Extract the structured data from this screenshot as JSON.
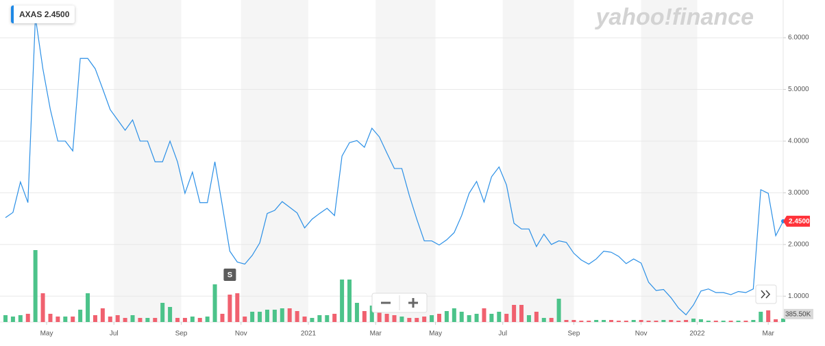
{
  "chart_data": {
    "type": "line",
    "brand": "yahoo!finance",
    "series": [
      {
        "name": "AXAS",
        "color": "#2a8fe6",
        "values": [
          2.52,
          2.62,
          3.21,
          2.81,
          6.4,
          5.4,
          4.61,
          4.0,
          4.0,
          3.81,
          5.6,
          5.6,
          5.4,
          5.01,
          4.61,
          4.41,
          4.21,
          4.41,
          4.0,
          4.0,
          3.6,
          3.6,
          4.0,
          3.6,
          2.99,
          3.4,
          2.81,
          2.81,
          3.6,
          2.75,
          1.87,
          1.66,
          1.62,
          1.79,
          2.03,
          2.6,
          2.66,
          2.83,
          2.72,
          2.61,
          2.32,
          2.49,
          2.6,
          2.7,
          2.56,
          3.71,
          3.97,
          4.01,
          3.88,
          4.25,
          4.08,
          3.77,
          3.47,
          3.47,
          2.95,
          2.49,
          2.07,
          2.07,
          1.99,
          2.09,
          2.23,
          2.56,
          2.99,
          3.22,
          2.82,
          3.31,
          3.5,
          3.15,
          2.41,
          2.3,
          2.3,
          1.96,
          2.2,
          2.0,
          2.07,
          2.04,
          1.83,
          1.7,
          1.62,
          1.72,
          1.87,
          1.85,
          1.77,
          1.63,
          1.72,
          1.64,
          1.27,
          1.11,
          1.13,
          0.97,
          0.77,
          0.64,
          0.83,
          1.1,
          1.14,
          1.07,
          1.07,
          1.03,
          1.09,
          1.07,
          1.14,
          3.06,
          2.99,
          2.17,
          2.45
        ]
      }
    ],
    "last_price": {
      "value": 2.45,
      "label": "2.4500"
    },
    "volume": {
      "up_color": "#4cc38a",
      "down_color": "#f0616f",
      "values": [
        760000,
        608000,
        760000,
        912000,
        7980000,
        3192000,
        912000,
        608000,
        608000,
        608000,
        1368000,
        3192000,
        760000,
        1520000,
        608000,
        760000,
        456000,
        760000,
        456000,
        456000,
        456000,
        2128000,
        1672000,
        456000,
        456000,
        608000,
        456000,
        608000,
        4180000,
        912000,
        3040000,
        3192000,
        608000,
        1140000,
        1140000,
        1368000,
        1368000,
        1520000,
        1520000,
        1216000,
        608000,
        456000,
        760000,
        760000,
        912000,
        4712000,
        4712000,
        2128000,
        1216000,
        1824000,
        1520000,
        912000,
        760000,
        608000,
        456000,
        456000,
        608000,
        760000,
        912000,
        1216000,
        1520000,
        1140000,
        760000,
        912000,
        1520000,
        912000,
        1140000,
        912000,
        1900000,
        1900000,
        760000,
        1140000,
        456000,
        456000,
        2584000,
        228000,
        228000,
        152000,
        152000,
        228000,
        228000,
        228000,
        152000,
        152000,
        228000,
        228000,
        152000,
        152000,
        228000,
        228000,
        152000,
        228000,
        380000,
        304000,
        152000,
        152000,
        152000,
        152000,
        152000,
        152000,
        228000,
        1140000,
        1292000,
        304000,
        385500
      ]
    },
    "last_volume": {
      "value": 385500,
      "label": "385.50K"
    },
    "vlim": [
      0,
      35720000
    ],
    "events": [
      {
        "x": 30,
        "label": "S"
      }
    ],
    "xlim": [
      0,
      104
    ],
    "xticks": [
      {
        "value": 5.5,
        "label": "May"
      },
      {
        "value": 14.5,
        "label": "Jul"
      },
      {
        "value": 23.5,
        "label": "Sep"
      },
      {
        "value": 31.5,
        "label": "Nov"
      },
      {
        "value": 40.5,
        "label": "2021"
      },
      {
        "value": 49.5,
        "label": "Mar"
      },
      {
        "value": 57.5,
        "label": "May"
      },
      {
        "value": 66.5,
        "label": "Jul"
      },
      {
        "value": 76,
        "label": "Sep"
      },
      {
        "value": 85,
        "label": "Nov"
      },
      {
        "value": 92.5,
        "label": "2022"
      },
      {
        "value": 102,
        "label": "Mar"
      }
    ],
    "ylim": [
      0.5,
      6.73
    ],
    "yticks": [
      {
        "value": 1,
        "label": "1.0000"
      },
      {
        "value": 2,
        "label": "2.0000"
      },
      {
        "value": 3,
        "label": "3.0000"
      },
      {
        "value": 4,
        "label": "4.0000"
      },
      {
        "value": 5,
        "label": "5.0000"
      },
      {
        "value": 6,
        "label": "6.0000"
      }
    ],
    "grid": true
  }
}
